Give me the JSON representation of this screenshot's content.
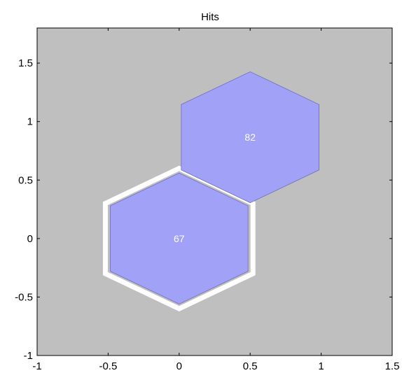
{
  "chart_data": {
    "type": "hexagonal-grid",
    "title": "Hits",
    "xlim": [
      -1,
      1.5
    ],
    "ylim": [
      -1,
      1.8
    ],
    "xticks": [
      -1,
      -0.5,
      0,
      0.5,
      1,
      1.5
    ],
    "yticks": [
      -1,
      -0.5,
      0,
      0.5,
      1,
      1.5
    ],
    "xtick_labels": [
      "-1",
      "-0.5",
      "0",
      "0.5",
      "1",
      "1.5"
    ],
    "ytick_labels": [
      "-1",
      "-0.5",
      "0",
      "0.5",
      "1",
      "1.5"
    ],
    "grid": false,
    "cells": [
      {
        "x": 0,
        "y": 0,
        "hits": "67",
        "selected": true
      },
      {
        "x": 0.5,
        "y": 0.866,
        "hits": "82",
        "selected": false
      }
    ],
    "colors": {
      "background": "#bfbfbf",
      "hexagon_fill": "#a1a1f7",
      "hexagon_stroke": "#6d6dbb",
      "selection_outline": "#ffffff",
      "cell_label": "#ffffff"
    }
  }
}
